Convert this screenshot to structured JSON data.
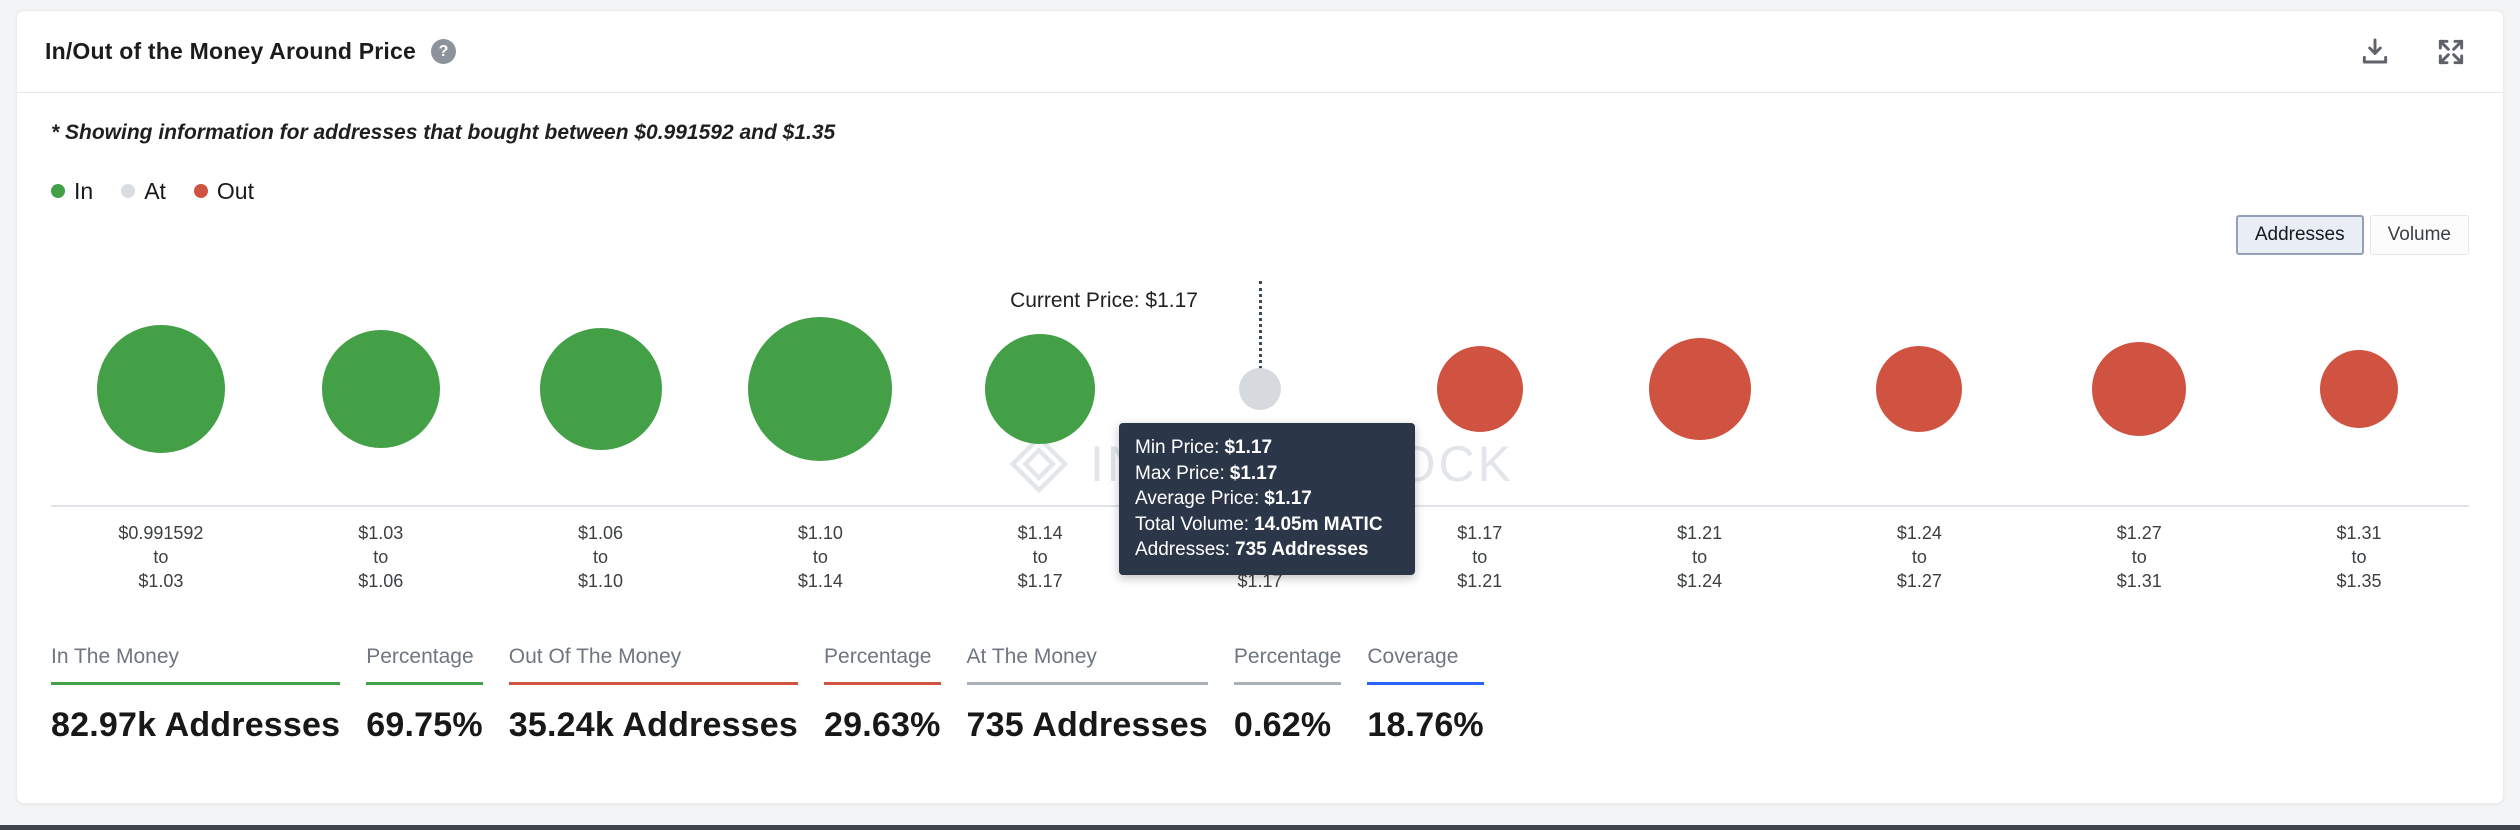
{
  "header": {
    "title": "In/Out of the Money Around Price",
    "help_icon": "?",
    "actions": [
      "download-icon",
      "expand-icon"
    ]
  },
  "note": "* Showing information for addresses that bought between $0.991592 and $1.35",
  "legend": [
    {
      "label": "In",
      "color": "#43a047"
    },
    {
      "label": "At",
      "color": "#d9dce0"
    },
    {
      "label": "Out",
      "color": "#cf5340"
    }
  ],
  "toggle": {
    "options": [
      {
        "label": "Addresses",
        "selected": true
      },
      {
        "label": "Volume",
        "selected": false
      }
    ]
  },
  "current_price_label": "Current Price: $1.17",
  "tooltip": {
    "rows": [
      {
        "label": "Min Price:",
        "value": "$1.17"
      },
      {
        "label": "Max Price:",
        "value": "$1.17"
      },
      {
        "label": "Average Price:",
        "value": "$1.17"
      },
      {
        "label": "Total Volume:",
        "value": "14.05m MATIC"
      },
      {
        "label": "Addresses:",
        "value": "735 Addresses"
      }
    ]
  },
  "chart_data": {
    "type": "bubble",
    "title": "In/Out of the Money Around Price",
    "x_axis": "price buckets (bought between $0.991592 and $1.35)",
    "separator": "to",
    "current_price": "$1.17",
    "colors": {
      "in": "#43a047",
      "at": "#d6d9dd",
      "out": "#cf5340"
    },
    "buckets": [
      {
        "from": "$0.991592",
        "to": "$1.03",
        "status": "in",
        "radius": 64
      },
      {
        "from": "$1.03",
        "to": "$1.06",
        "status": "in",
        "radius": 59
      },
      {
        "from": "$1.06",
        "to": "$1.10",
        "status": "in",
        "radius": 61
      },
      {
        "from": "$1.10",
        "to": "$1.14",
        "status": "in",
        "radius": 72
      },
      {
        "from": "$1.14",
        "to": "$1.17",
        "status": "in",
        "radius": 55
      },
      {
        "from": "$1.17",
        "to": "$1.17",
        "status": "at",
        "radius": 21
      },
      {
        "from": "$1.17",
        "to": "$1.21",
        "status": "out",
        "radius": 43
      },
      {
        "from": "$1.21",
        "to": "$1.24",
        "status": "out",
        "radius": 51
      },
      {
        "from": "$1.24",
        "to": "$1.27",
        "status": "out",
        "radius": 43
      },
      {
        "from": "$1.27",
        "to": "$1.31",
        "status": "out",
        "radius": 47
      },
      {
        "from": "$1.31",
        "to": "$1.35",
        "status": "out",
        "radius": 39
      }
    ],
    "at_bucket_tooltip": {
      "min_price": "$1.17",
      "max_price": "$1.17",
      "average_price": "$1.17",
      "total_volume": "14.05m MATIC",
      "addresses": "735 Addresses"
    }
  },
  "stats": [
    {
      "label": "In The Money",
      "value": "82.97k Addresses",
      "color": "#43a047"
    },
    {
      "label": "Percentage",
      "value": "69.75%",
      "color": "#43a047"
    },
    {
      "label": "Out Of The Money",
      "value": "35.24k Addresses",
      "color": "#cf5340"
    },
    {
      "label": "Percentage",
      "value": "29.63%",
      "color": "#cf5340"
    },
    {
      "label": "At The Money",
      "value": "735 Addresses",
      "color": "#aab0b8"
    },
    {
      "label": "Percentage",
      "value": "0.62%",
      "color": "#aab0b8"
    },
    {
      "label": "Coverage",
      "value": "18.76%",
      "color": "#2962ff"
    }
  ],
  "watermark": "IntoTheBlock"
}
